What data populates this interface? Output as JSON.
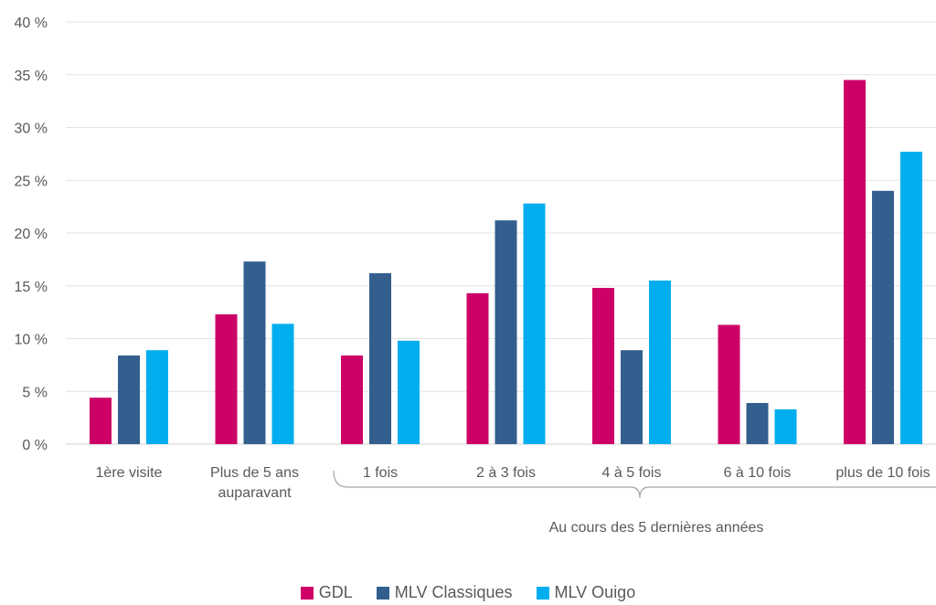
{
  "chart_data": {
    "type": "bar",
    "categories": [
      "1ère visite",
      "Plus de 5 ans auparavant",
      "1 fois",
      "2 à 3 fois",
      "4 à 5 fois",
      "6 à 10 fois",
      "plus de 10 fois"
    ],
    "category_lines": [
      [
        "1ère visite"
      ],
      [
        "Plus de 5 ans",
        "auparavant"
      ],
      [
        "1 fois"
      ],
      [
        "2 à 3 fois"
      ],
      [
        "4 à 5 fois"
      ],
      [
        "6 à 10 fois"
      ],
      [
        "plus de 10 fois"
      ]
    ],
    "series": [
      {
        "name": "GDL",
        "color": "#cc0066",
        "values": [
          4.4,
          12.3,
          8.4,
          14.3,
          14.8,
          11.3,
          34.5
        ]
      },
      {
        "name": "MLV Classiques",
        "color": "#335f8f",
        "values": [
          8.4,
          17.3,
          16.2,
          21.2,
          8.9,
          3.9,
          24.0
        ]
      },
      {
        "name": "MLV Ouigo",
        "color": "#00aeef",
        "values": [
          8.9,
          11.4,
          9.8,
          22.8,
          15.5,
          3.3,
          27.7
        ]
      }
    ],
    "ylim": [
      0,
      40
    ],
    "yticks": [
      "0 %",
      "5 %",
      "10 %",
      "15 %",
      "20 %",
      "25 %",
      "30 %",
      "35 %",
      "40 %"
    ],
    "grid": true,
    "group_annotation": "Au cours des 5 dernières années",
    "legend_position": "bottom"
  }
}
